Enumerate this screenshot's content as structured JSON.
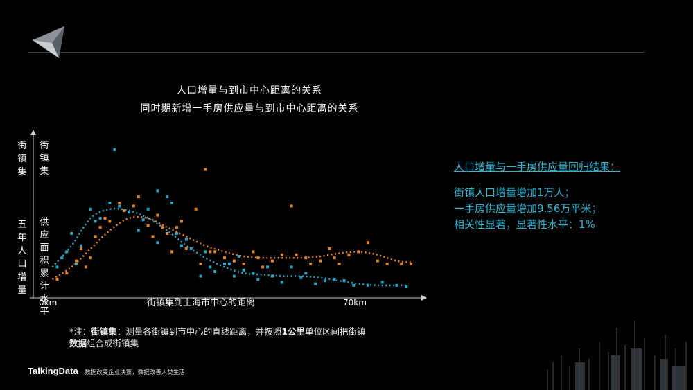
{
  "chart_data": {
    "type": "scatter",
    "title": "人口增量与到市中心距离的关系",
    "subtitle": "同时期新增一手房供应量与到市中心距离的关系",
    "ylabel_left": [
      "街",
      "镇",
      "集",
      "",
      "",
      "",
      "五",
      "年",
      "人",
      "口",
      "增",
      "量"
    ],
    "ylabel_right": [
      "街",
      "镇",
      "集",
      "",
      "",
      "",
      "供",
      "应",
      "面",
      "积",
      "累",
      "计",
      "水",
      "平"
    ],
    "xlabel": "街镇集到上海市中心的距离",
    "xtick_start": "0km",
    "xtick_end": "70km",
    "xlim": [
      0,
      80
    ],
    "ylim": [
      0,
      100
    ],
    "series": [
      {
        "color": "#2aa6c9",
        "points": [
          [
            5,
            18
          ],
          [
            6,
            24
          ],
          [
            7,
            28
          ],
          [
            8,
            40
          ],
          [
            9,
            20
          ],
          [
            10,
            32
          ],
          [
            12,
            56
          ],
          [
            13,
            48
          ],
          [
            14,
            50
          ],
          [
            16,
            60
          ],
          [
            18,
            58
          ],
          [
            20,
            54
          ],
          [
            22,
            42
          ],
          [
            23,
            49
          ],
          [
            24,
            56
          ],
          [
            26,
            68
          ],
          [
            28,
            64
          ],
          [
            29,
            60
          ],
          [
            30,
            40
          ],
          [
            31,
            32
          ],
          [
            32,
            36
          ],
          [
            33,
            30
          ],
          [
            35,
            12
          ],
          [
            36,
            28
          ],
          [
            37,
            18
          ],
          [
            38,
            15
          ],
          [
            40,
            20
          ],
          [
            42,
            12
          ],
          [
            43,
            25
          ],
          [
            44,
            16
          ],
          [
            46,
            14
          ],
          [
            47,
            10
          ],
          [
            49,
            18
          ],
          [
            50,
            12
          ],
          [
            52,
            8
          ],
          [
            54,
            18
          ],
          [
            56,
            11
          ],
          [
            57,
            14
          ],
          [
            59,
            7
          ],
          [
            61,
            9
          ],
          [
            63,
            10
          ],
          [
            65,
            9
          ],
          [
            67,
            6
          ],
          [
            70,
            6
          ],
          [
            73,
            8
          ],
          [
            76,
            6
          ],
          [
            78,
            5
          ],
          [
            17,
            95
          ],
          [
            26,
            34
          ],
          [
            41,
            20
          ]
        ],
        "trend": [
          [
            4,
            18
          ],
          [
            8,
            32
          ],
          [
            12,
            50
          ],
          [
            16,
            56
          ],
          [
            20,
            55
          ],
          [
            24,
            50
          ],
          [
            28,
            42
          ],
          [
            32,
            32
          ],
          [
            36,
            24
          ],
          [
            40,
            18
          ],
          [
            44,
            14
          ],
          [
            48,
            13
          ],
          [
            52,
            12
          ],
          [
            56,
            12
          ],
          [
            60,
            11
          ],
          [
            64,
            9
          ],
          [
            68,
            7
          ],
          [
            72,
            6
          ],
          [
            76,
            6
          ],
          [
            78,
            6
          ]
        ]
      },
      {
        "color": "#e8862a",
        "points": [
          [
            5,
            10
          ],
          [
            7,
            14
          ],
          [
            9,
            22
          ],
          [
            10,
            30
          ],
          [
            11,
            18
          ],
          [
            12,
            24
          ],
          [
            13,
            38
          ],
          [
            14,
            44
          ],
          [
            15,
            50
          ],
          [
            16,
            48
          ],
          [
            18,
            60
          ],
          [
            19,
            55
          ],
          [
            21,
            58
          ],
          [
            22,
            64
          ],
          [
            24,
            45
          ],
          [
            25,
            38
          ],
          [
            26,
            52
          ],
          [
            27,
            44
          ],
          [
            28,
            40
          ],
          [
            29,
            28
          ],
          [
            30,
            44
          ],
          [
            31,
            48
          ],
          [
            32,
            30
          ],
          [
            34,
            56
          ],
          [
            35,
            20
          ],
          [
            36,
            82
          ],
          [
            37,
            28
          ],
          [
            38,
            28
          ],
          [
            40,
            24
          ],
          [
            42,
            22
          ],
          [
            44,
            20
          ],
          [
            46,
            28
          ],
          [
            47,
            24
          ],
          [
            48,
            18
          ],
          [
            50,
            22
          ],
          [
            52,
            26
          ],
          [
            54,
            58
          ],
          [
            55,
            26
          ],
          [
            57,
            24
          ],
          [
            58,
            20
          ],
          [
            60,
            22
          ],
          [
            62,
            30
          ],
          [
            63,
            24
          ],
          [
            64,
            20
          ],
          [
            66,
            26
          ],
          [
            68,
            28
          ],
          [
            70,
            34
          ],
          [
            72,
            22
          ],
          [
            74,
            20
          ],
          [
            77,
            20
          ],
          [
            79,
            20
          ]
        ],
        "trend": [
          [
            4,
            10
          ],
          [
            8,
            18
          ],
          [
            12,
            30
          ],
          [
            16,
            42
          ],
          [
            20,
            50
          ],
          [
            24,
            50
          ],
          [
            28,
            44
          ],
          [
            32,
            38
          ],
          [
            36,
            32
          ],
          [
            40,
            28
          ],
          [
            44,
            25
          ],
          [
            48,
            24
          ],
          [
            52,
            24
          ],
          [
            56,
            24
          ],
          [
            60,
            25
          ],
          [
            64,
            27
          ],
          [
            68,
            28
          ],
          [
            72,
            26
          ],
          [
            76,
            22
          ],
          [
            79,
            21
          ]
        ]
      }
    ]
  },
  "note": {
    "prefix": "*注：",
    "term": "街镇集",
    "text1": "：测量各街镇到市中心的直线距离，并按照",
    "unit": "1公里",
    "text2": "单位区间把街镇",
    "word": "数据",
    "text3": "组合成街镇集"
  },
  "result": {
    "heading": "人口增量与一手房供应量回归结果：",
    "line1": "街镇人口增量增加1万人；",
    "line2": "一手房供应量增加9.56万平米；",
    "line3": "相关性显著，显著性水平：1%"
  },
  "footer": {
    "brand": "TalkingData",
    "slogan": "数据改变企业决策，数据改善人类生活"
  },
  "colors": {
    "accent": "#2fb6d4",
    "series_blue": "#2aa6c9",
    "series_orange": "#e8862a"
  }
}
